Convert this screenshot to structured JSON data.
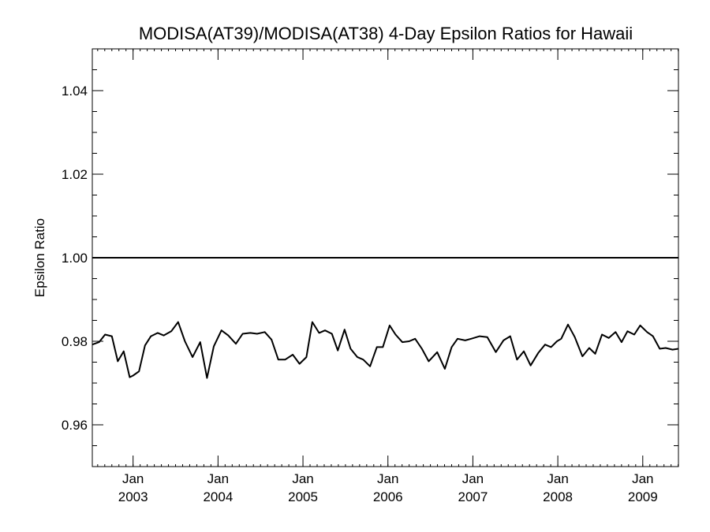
{
  "chart_data": {
    "type": "line",
    "title": "MODISA(AT39)/MODISA(AT38) 4-Day Epsilon Ratios for Hawaii",
    "xlabel": "",
    "ylabel": "Epsilon Ratio",
    "xlim": [
      2002.52,
      2009.42
    ],
    "ylim": [
      0.95,
      1.05
    ],
    "grid": false,
    "y_ticks": [
      0.96,
      0.98,
      1.0,
      1.02,
      1.04
    ],
    "y_tick_labels": [
      "0.96",
      "0.98",
      "1.00",
      "1.02",
      "1.04"
    ],
    "y_minor_step": 0.005,
    "x_ticks": [
      {
        "x": 2003.0,
        "month": "Jan",
        "year": "2003"
      },
      {
        "x": 2004.0,
        "month": "Jan",
        "year": "2004"
      },
      {
        "x": 2005.0,
        "month": "Jan",
        "year": "2005"
      },
      {
        "x": 2006.0,
        "month": "Jan",
        "year": "2006"
      },
      {
        "x": 2007.0,
        "month": "Jan",
        "year": "2007"
      },
      {
        "x": 2008.0,
        "month": "Jan",
        "year": "2008"
      },
      {
        "x": 2009.0,
        "month": "Jan",
        "year": "2009"
      }
    ],
    "x_minor_step_months": 3,
    "reference_line": {
      "y": 1.0
    },
    "series": [
      {
        "color": "#000000",
        "x": [
          2002.52,
          2002.6,
          2002.67,
          2002.75,
          2002.82,
          2002.89,
          2002.96,
          2003.0,
          2003.07,
          2003.14,
          2003.21,
          2003.29,
          2003.36,
          2003.45,
          2003.53,
          2003.61,
          2003.7,
          2003.79,
          2003.87,
          2003.95,
          2004.04,
          2004.12,
          2004.21,
          2004.29,
          2004.38,
          2004.46,
          2004.55,
          2004.63,
          2004.71,
          2004.79,
          2004.88,
          2004.96,
          2005.04,
          2005.11,
          2005.19,
          2005.26,
          2005.34,
          2005.41,
          2005.49,
          2005.56,
          2005.64,
          2005.71,
          2005.79,
          2005.87,
          2005.94,
          2006.02,
          2006.09,
          2006.17,
          2006.25,
          2006.32,
          2006.4,
          2006.48,
          2006.58,
          2006.67,
          2006.75,
          2006.82,
          2006.91,
          2006.98,
          2007.08,
          2007.17,
          2007.27,
          2007.36,
          2007.44,
          2007.52,
          2007.6,
          2007.68,
          2007.77,
          2007.85,
          2007.92,
          2007.99,
          2008.04,
          2008.12,
          2008.2,
          2008.29,
          2008.37,
          2008.44,
          2008.52,
          2008.6,
          2008.68,
          2008.75,
          2008.82,
          2008.9,
          2008.97,
          2009.05,
          2009.12,
          2009.2,
          2009.27,
          2009.35,
          2009.42
        ],
        "values": [
          0.9792,
          0.9798,
          0.9816,
          0.9812,
          0.9752,
          0.9776,
          0.9714,
          0.9718,
          0.9728,
          0.979,
          0.9812,
          0.982,
          0.9814,
          0.9824,
          0.9846,
          0.98,
          0.9762,
          0.9798,
          0.9712,
          0.9788,
          0.9826,
          0.9814,
          0.9794,
          0.9818,
          0.982,
          0.9818,
          0.9822,
          0.9804,
          0.9756,
          0.9756,
          0.9768,
          0.9746,
          0.9762,
          0.9846,
          0.982,
          0.9826,
          0.9818,
          0.9778,
          0.9828,
          0.9782,
          0.9762,
          0.9756,
          0.974,
          0.9786,
          0.9786,
          0.9838,
          0.9816,
          0.9798,
          0.98,
          0.9806,
          0.9782,
          0.9752,
          0.9774,
          0.9734,
          0.9786,
          0.9806,
          0.9802,
          0.9806,
          0.9812,
          0.981,
          0.9774,
          0.9802,
          0.9812,
          0.9756,
          0.9776,
          0.9742,
          0.9772,
          0.9792,
          0.9786,
          0.98,
          0.9806,
          0.984,
          0.981,
          0.9764,
          0.9784,
          0.977,
          0.9816,
          0.9808,
          0.9822,
          0.9798,
          0.9824,
          0.9816,
          0.9838,
          0.9822,
          0.9812,
          0.9782,
          0.9784,
          0.978,
          0.9782
        ]
      }
    ]
  }
}
